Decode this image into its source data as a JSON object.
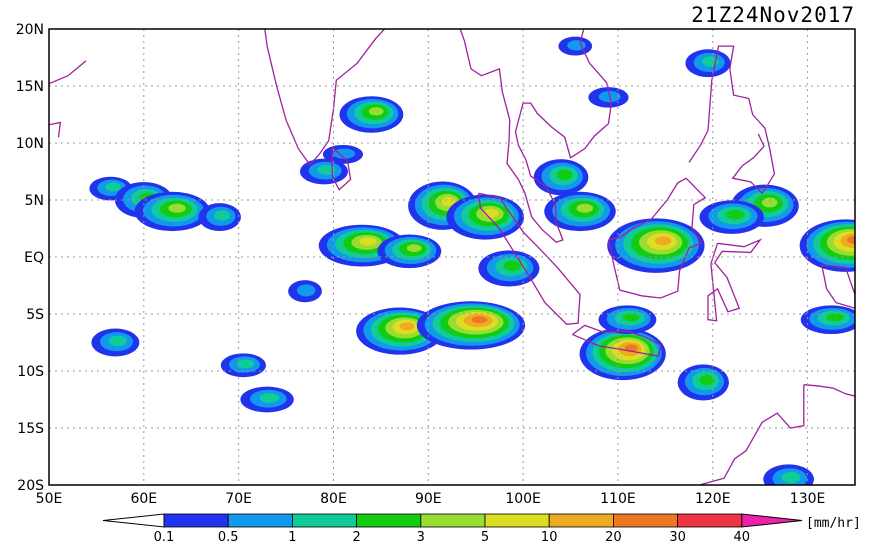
{
  "title": "21Z24Nov2017",
  "map": {
    "lat_labels": [
      "20N",
      "15N",
      "10N",
      "5N",
      "EQ",
      "5S",
      "10S",
      "15S",
      "20S"
    ],
    "lon_labels": [
      "50E",
      "60E",
      "70E",
      "80E",
      "90E",
      "100E",
      "110E",
      "120E",
      "130E"
    ],
    "extent": {
      "lon_min": 50,
      "lon_max": 135,
      "lat_min": -20,
      "lat_max": 20
    },
    "coastline_color": "#a020a0",
    "gridlines": true
  },
  "colorbar": {
    "unit": "[mm/hr]",
    "ticks": [
      "0.1",
      "0.5",
      "1",
      "2",
      "3",
      "5",
      "10",
      "20",
      "30",
      "40"
    ],
    "under_color": "#ffffff",
    "over_color": "#ee22aa",
    "colors": [
      "#2233ee",
      "#1199ee",
      "#11cc99",
      "#11cc11",
      "#99dd33",
      "#dddd22",
      "#eeaa22",
      "#ee7722",
      "#ee3344"
    ]
  },
  "rain_cells": [
    {
      "lon": 56.5,
      "lat": 6.0,
      "level": 2
    },
    {
      "lon": 60.0,
      "lat": 5.0,
      "level": 3
    },
    {
      "lon": 63.0,
      "lat": 4.0,
      "level": 4
    },
    {
      "lon": 84.0,
      "lat": 12.5,
      "level": 4
    },
    {
      "lon": 81.0,
      "lat": 9.0,
      "level": 1
    },
    {
      "lon": 91.5,
      "lat": 4.5,
      "level": 5
    },
    {
      "lon": 96.0,
      "lat": 3.5,
      "level": 5
    },
    {
      "lon": 83.0,
      "lat": 1.0,
      "level": 5
    },
    {
      "lon": 88.0,
      "lat": 0.5,
      "level": 4
    },
    {
      "lon": 98.5,
      "lat": -1.0,
      "level": 3
    },
    {
      "lon": 77.0,
      "lat": -3.0,
      "level": 1
    },
    {
      "lon": 87.0,
      "lat": -6.5,
      "level": 6
    },
    {
      "lon": 94.5,
      "lat": -6.0,
      "level": 7
    },
    {
      "lon": 104.0,
      "lat": 7.0,
      "level": 3
    },
    {
      "lon": 106.0,
      "lat": 4.0,
      "level": 4
    },
    {
      "lon": 110.5,
      "lat": -8.5,
      "level": 7
    },
    {
      "lon": 111.0,
      "lat": -5.5,
      "level": 3
    },
    {
      "lon": 114.0,
      "lat": 1.0,
      "level": 6
    },
    {
      "lon": 119.5,
      "lat": 17.0,
      "level": 2
    },
    {
      "lon": 109.0,
      "lat": 14.0,
      "level": 1
    },
    {
      "lon": 105.5,
      "lat": 18.5,
      "level": 1
    },
    {
      "lon": 125.5,
      "lat": 4.5,
      "level": 4
    },
    {
      "lon": 122.0,
      "lat": 3.5,
      "level": 3
    },
    {
      "lon": 134.0,
      "lat": 1.0,
      "level": 7
    },
    {
      "lon": 132.5,
      "lat": -5.5,
      "level": 3
    },
    {
      "lon": 119.0,
      "lat": -11.0,
      "level": 3
    },
    {
      "lon": 57.0,
      "lat": -7.5,
      "level": 2
    },
    {
      "lon": 73.0,
      "lat": -12.5,
      "level": 2
    },
    {
      "lon": 70.5,
      "lat": -9.5,
      "level": 2
    },
    {
      "lon": 128.0,
      "lat": -19.5,
      "level": 2
    },
    {
      "lon": 68.0,
      "lat": 3.5,
      "level": 2
    },
    {
      "lon": 79.0,
      "lat": 7.5,
      "level": 2
    }
  ]
}
